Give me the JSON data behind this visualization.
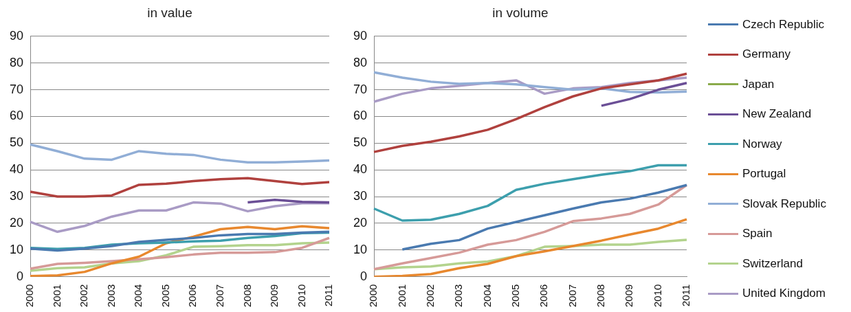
{
  "chart_data": [
    {
      "type": "line",
      "title": "in value",
      "categories": [
        "2000",
        "2001",
        "2002",
        "2003",
        "2004",
        "2005",
        "2006",
        "2007",
        "2008",
        "2009",
        "2010",
        "2011"
      ],
      "ylim": [
        0,
        90
      ],
      "yticks": [
        0,
        10,
        20,
        30,
        40,
        50,
        60,
        70,
        80,
        90
      ],
      "grid": "y",
      "legend": false,
      "series": [
        {
          "color": "#4a7ab0",
          "values": [
            10.5,
            9.8,
            10.5,
            11.5,
            13,
            13.8,
            14.5,
            15.5,
            16,
            16,
            16.5,
            16.8
          ]
        },
        {
          "color": "#b0413e",
          "values": [
            31.8,
            30,
            30,
            30.4,
            34.4,
            34.8,
            35.8,
            36.5,
            36.9,
            35.8,
            34.7,
            35.4
          ]
        },
        {
          "color": "#8aaa4a",
          "values": [
            null,
            null,
            null,
            null,
            null,
            null,
            null,
            null,
            null,
            null,
            null,
            null
          ]
        },
        {
          "color": "#6b4f96",
          "values": [
            null,
            null,
            null,
            null,
            null,
            null,
            null,
            null,
            27.8,
            28.8,
            28,
            27.8
          ]
        },
        {
          "color": "#3d9fad",
          "values": [
            10.8,
            10.4,
            10.8,
            12,
            12.5,
            12.8,
            13.2,
            13.5,
            14.5,
            15.2,
            16.3,
            16.5
          ]
        },
        {
          "color": "#e8882e",
          "values": [
            0.2,
            0.5,
            1.8,
            5,
            7.5,
            12.5,
            15,
            17.8,
            18.6,
            17.8,
            18.9,
            18.2
          ]
        },
        {
          "color": "#91aed6",
          "values": [
            49.5,
            47,
            44.2,
            43.8,
            47,
            46,
            45.6,
            43.8,
            42.8,
            42.8,
            43.1,
            43.5
          ]
        },
        {
          "color": "#d69a98",
          "values": [
            3,
            4.8,
            5.2,
            5.8,
            6.5,
            7.3,
            8.3,
            9,
            9,
            9.2,
            10.8,
            14.5
          ]
        },
        {
          "color": "#b3d38d",
          "values": [
            2.2,
            3.2,
            3.5,
            5,
            5.8,
            8,
            11.2,
            11.4,
            11.8,
            11.8,
            12.5,
            12.8
          ]
        },
        {
          "color": "#a99bc5",
          "values": [
            20.5,
            16.8,
            19,
            22.5,
            24.8,
            24.8,
            27.8,
            27.4,
            24.5,
            26.4,
            27.5,
            27.5
          ]
        }
      ]
    },
    {
      "type": "line",
      "title": "in volume",
      "categories": [
        "2000",
        "2001",
        "2002",
        "2003",
        "2004",
        "2005",
        "2006",
        "2007",
        "2008",
        "2009",
        "2010",
        "2011"
      ],
      "ylim": [
        0,
        90
      ],
      "yticks": [
        0,
        10,
        20,
        30,
        40,
        50,
        60,
        70,
        80,
        90
      ],
      "grid": "y",
      "legend": "right",
      "series": [
        {
          "name": "Czech Republic",
          "color": "#4a7ab0",
          "values": [
            null,
            10.2,
            12.3,
            13.7,
            18,
            20.5,
            23,
            25.5,
            27.8,
            29.2,
            31.5,
            34.3
          ]
        },
        {
          "name": "Germany",
          "color": "#b0413e",
          "values": [
            46.7,
            49,
            50.5,
            52.5,
            55,
            59,
            63.5,
            67.5,
            70.5,
            72,
            73.5,
            76
          ]
        },
        {
          "name": "Japan",
          "color": "#8aaa4a",
          "values": [
            null,
            null,
            null,
            null,
            null,
            null,
            null,
            null,
            null,
            null,
            null,
            null
          ]
        },
        {
          "name": "New Zealand",
          "color": "#6b4f96",
          "values": [
            null,
            null,
            null,
            null,
            null,
            null,
            null,
            null,
            64,
            66.5,
            70,
            72.5
          ]
        },
        {
          "name": "Norway",
          "color": "#3d9fad",
          "values": [
            25.5,
            21,
            21.3,
            23.5,
            26.5,
            32.5,
            34.8,
            36.5,
            38.2,
            39.5,
            41.7,
            41.7
          ]
        },
        {
          "name": "Portugal",
          "color": "#e8882e",
          "values": [
            0,
            0.3,
            1,
            3.2,
            4.8,
            7.7,
            9.5,
            11.5,
            13.5,
            15.8,
            18,
            21.5
          ]
        },
        {
          "name": "Slovak Republic",
          "color": "#91aed6",
          "values": [
            76.5,
            74.5,
            73,
            72.2,
            72.5,
            72,
            71,
            70,
            70.5,
            69.2,
            69,
            69.3
          ]
        },
        {
          "name": "Spain",
          "color": "#d69a98",
          "values": [
            2.8,
            5,
            7,
            9,
            12,
            13.7,
            16.8,
            20.8,
            21.8,
            23.5,
            27,
            34.3
          ]
        },
        {
          "name": "Switzerland",
          "color": "#b3d38d",
          "values": [
            2.8,
            3.5,
            3.8,
            5,
            5.7,
            7.7,
            11.2,
            11.5,
            12,
            12,
            13,
            13.8
          ]
        },
        {
          "name": "United Kingdom",
          "color": "#a99bc5",
          "values": [
            65.5,
            68.5,
            70.5,
            71.5,
            72.5,
            73.5,
            68.5,
            70.5,
            71,
            72.5,
            73.5,
            74.5
          ]
        }
      ]
    }
  ]
}
